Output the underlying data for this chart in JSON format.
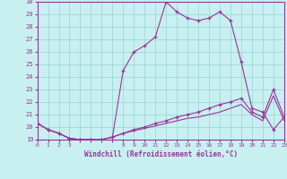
{
  "xlabel": "Windchill (Refroidissement éolien,°C)",
  "bg_color": "#c8f0f0",
  "grid_color": "#a0d8d8",
  "line_color": "#993399",
  "hours": [
    0,
    1,
    2,
    3,
    4,
    5,
    6,
    7,
    8,
    9,
    10,
    11,
    12,
    13,
    14,
    15,
    16,
    17,
    18,
    19,
    20,
    21,
    22,
    23
  ],
  "temp": [
    20.3,
    19.8,
    19.5,
    19.1,
    19.0,
    19.0,
    19.0,
    19.2,
    24.5,
    26.0,
    26.5,
    27.2,
    30.0,
    29.2,
    28.7,
    28.5,
    28.7,
    29.2,
    28.5,
    25.2,
    21.5,
    21.2,
    19.8,
    20.8
  ],
  "windchill": [
    20.3,
    19.8,
    19.5,
    19.1,
    19.0,
    19.0,
    19.0,
    19.2,
    19.5,
    19.8,
    20.0,
    20.3,
    20.5,
    20.8,
    21.0,
    21.2,
    21.5,
    21.8,
    22.0,
    22.3,
    21.2,
    20.8,
    23.0,
    20.8
  ],
  "line3": [
    20.3,
    19.8,
    19.5,
    19.1,
    19.0,
    19.0,
    19.0,
    19.2,
    19.5,
    19.7,
    19.9,
    20.1,
    20.3,
    20.5,
    20.7,
    20.8,
    21.0,
    21.2,
    21.5,
    21.8,
    21.0,
    20.5,
    22.5,
    20.5
  ],
  "ylim": [
    19,
    30
  ],
  "yticks": [
    19,
    20,
    21,
    22,
    23,
    24,
    25,
    26,
    27,
    28,
    29,
    30
  ],
  "xtick_labels": [
    "0",
    "1",
    "2",
    "3",
    "",
    "",
    "",
    "",
    "8",
    "9",
    "10",
    "11",
    "12",
    "13",
    "14",
    "15",
    "16",
    "17",
    "18",
    "19",
    "20",
    "21",
    "22",
    "23"
  ]
}
